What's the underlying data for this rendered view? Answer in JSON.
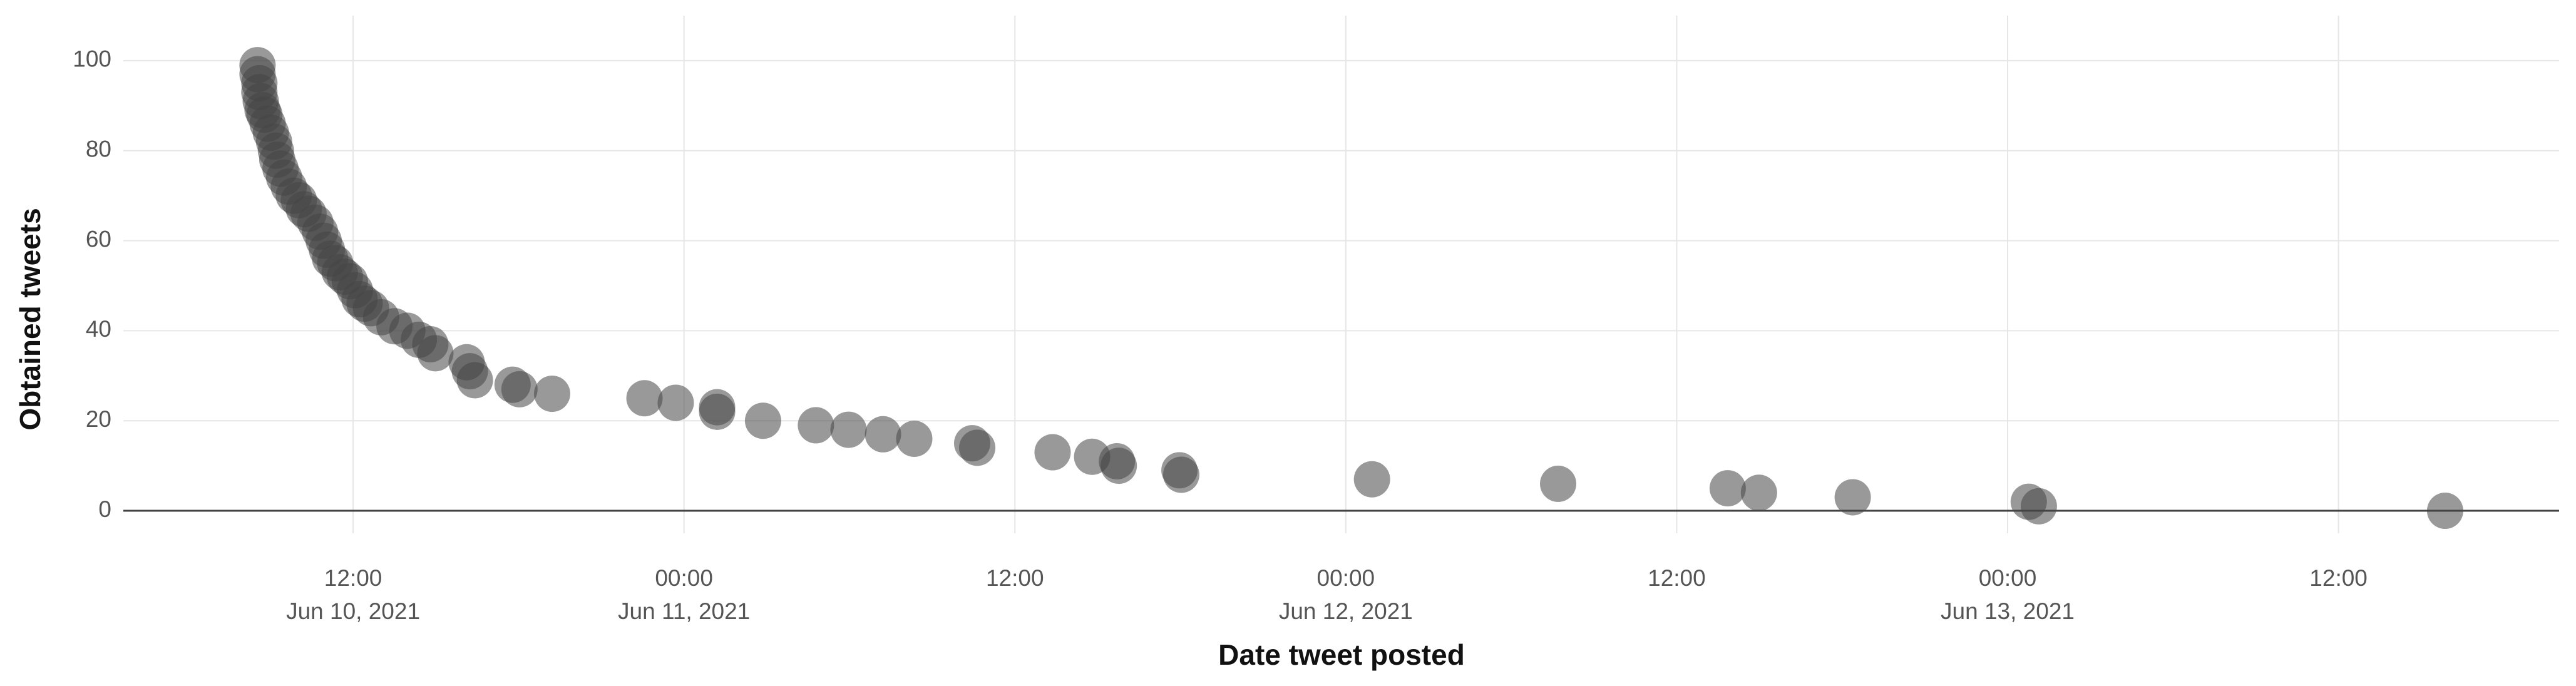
{
  "chart_data": {
    "type": "scatter",
    "x_label": "Date tweet posted",
    "y_label": "Obtained tweets",
    "color": "rgba(70,70,70,0.55)",
    "grid": true,
    "xlim": [
      "2021-06-10T03:40",
      "2021-06-13T20:00"
    ],
    "xticks": [
      {
        "value": "2021-06-10T12:00",
        "label": [
          "12:00",
          "Jun 10, 2021"
        ]
      },
      {
        "value": "2021-06-11T00:00",
        "label": [
          "00:00",
          "Jun 11, 2021"
        ]
      },
      {
        "value": "2021-06-11T12:00",
        "label": [
          "12:00"
        ]
      },
      {
        "value": "2021-06-12T00:00",
        "label": [
          "00:00",
          "Jun 12, 2021"
        ]
      },
      {
        "value": "2021-06-12T12:00",
        "label": [
          "12:00"
        ]
      },
      {
        "value": "2021-06-13T00:00",
        "label": [
          "00:00",
          "Jun 13, 2021"
        ]
      },
      {
        "value": "2021-06-13T12:00",
        "label": [
          "12:00"
        ]
      }
    ],
    "ylim": [
      -5,
      110
    ],
    "yticks": [
      0,
      20,
      40,
      60,
      80,
      100
    ],
    "x": [
      "2021-06-10T08:32",
      "2021-06-10T08:32",
      "2021-06-10T08:36",
      "2021-06-10T08:36",
      "2021-06-10T08:39",
      "2021-06-10T08:43",
      "2021-06-10T08:47",
      "2021-06-10T08:54",
      "2021-06-10T09:01",
      "2021-06-10T09:08",
      "2021-06-10T09:12",
      "2021-06-10T09:15",
      "2021-06-10T09:22",
      "2021-06-10T09:30",
      "2021-06-10T09:40",
      "2021-06-10T09:51",
      "2021-06-10T10:02",
      "2021-06-10T10:13",
      "2021-06-10T10:23",
      "2021-06-10T10:38",
      "2021-06-10T10:48",
      "2021-06-10T10:56",
      "2021-06-10T11:03",
      "2021-06-10T11:10",
      "2021-06-10T11:21",
      "2021-06-10T11:31",
      "2021-06-10T11:42",
      "2021-06-10T11:53",
      "2021-06-10T12:04",
      "2021-06-10T12:14",
      "2021-06-10T12:25",
      "2021-06-10T12:39",
      "2021-06-10T13:01",
      "2021-06-10T13:30",
      "2021-06-10T13:58",
      "2021-06-10T14:23",
      "2021-06-10T14:48",
      "2021-06-10T14:59",
      "2021-06-10T16:07",
      "2021-06-10T16:14",
      "2021-06-10T16:25",
      "2021-06-10T17:47",
      "2021-06-10T18:02",
      "2021-06-10T19:13",
      "2021-06-10T22:34",
      "2021-06-10T23:42",
      "2021-06-11T01:12",
      "2021-06-11T01:12",
      "2021-06-11T02:52",
      "2021-06-11T04:47",
      "2021-06-11T05:58",
      "2021-06-11T07:13",
      "2021-06-11T08:21",
      "2021-06-11T10:27",
      "2021-06-11T10:38",
      "2021-06-11T13:22",
      "2021-06-11T14:48",
      "2021-06-11T15:42",
      "2021-06-11T15:46",
      "2021-06-11T17:58",
      "2021-06-11T18:02",
      "2021-06-12T00:57",
      "2021-06-12T07:42",
      "2021-06-12T13:51",
      "2021-06-12T14:59",
      "2021-06-12T18:23",
      "2021-06-13T00:46",
      "2021-06-13T01:08",
      "2021-06-13T15:52"
    ],
    "values": [
      99,
      97,
      95,
      93,
      91,
      89,
      88,
      86,
      84,
      82,
      80,
      78,
      76,
      74,
      72,
      70,
      69,
      67,
      66,
      64,
      62,
      60,
      58,
      56,
      55,
      53,
      52,
      51,
      49,
      47,
      46,
      45,
      43,
      41,
      40,
      38,
      37,
      35,
      33,
      31,
      29,
      28,
      27,
      26,
      25,
      24,
      23,
      22,
      20,
      19,
      18,
      17,
      16,
      15,
      14,
      13,
      12,
      11,
      10,
      9,
      8,
      7,
      6,
      5,
      4,
      3,
      2,
      1,
      0
    ]
  }
}
